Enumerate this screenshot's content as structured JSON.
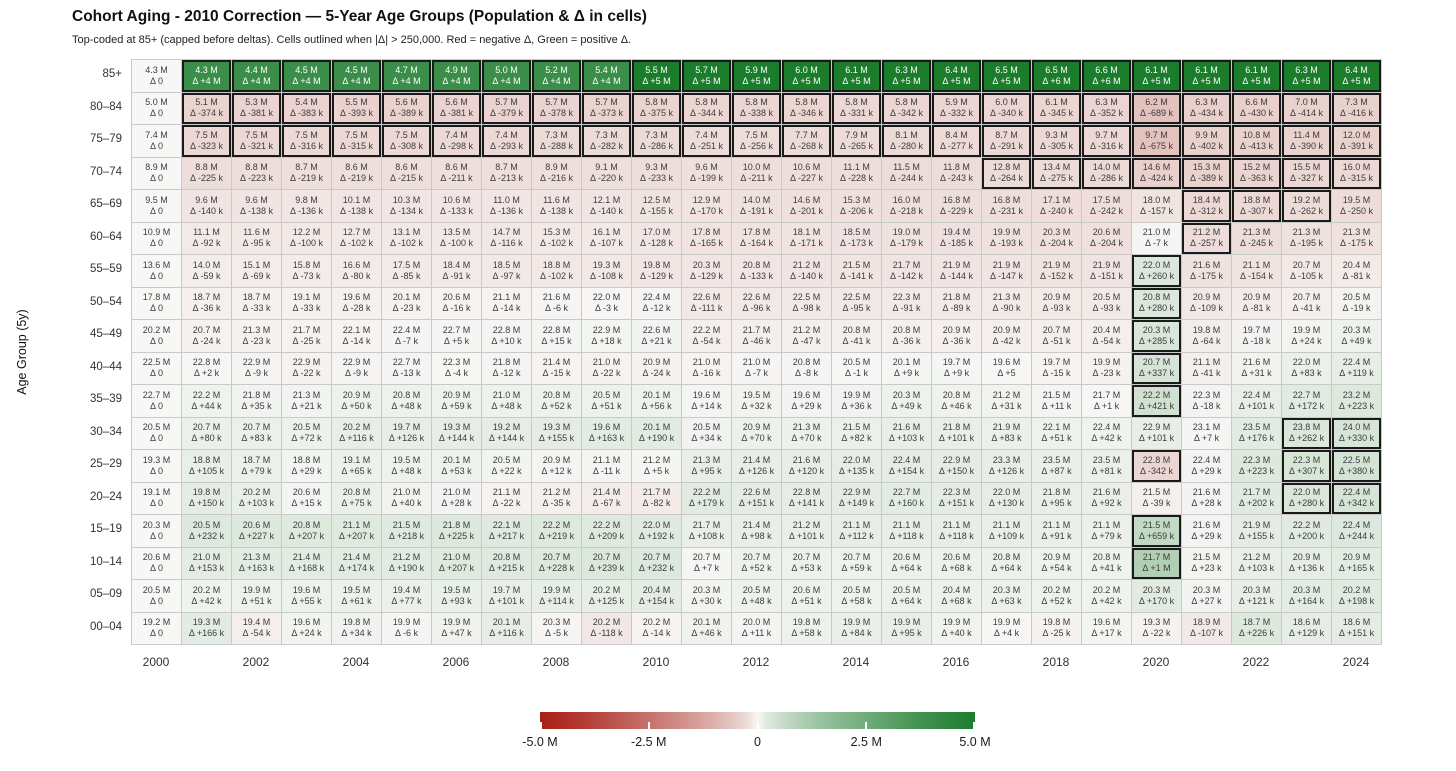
{
  "header": {
    "title": "Cohort Aging - 2010 Correction — 5-Year Age Groups (Population & Δ in cells)",
    "subtitle": "Top-coded at 85+ (capped before deltas). Cells outlined when |Δ| > 250,000. Red = negative Δ, Green = positive Δ."
  },
  "y_axis": {
    "title": "Age Group (5y)"
  },
  "x_axis": {
    "tick_labels": [
      "2000",
      "2002",
      "2004",
      "2006",
      "2008",
      "2010",
      "2012",
      "2014",
      "2016",
      "2018",
      "2020",
      "2022",
      "2024"
    ]
  },
  "colorbar": {
    "tick_labels": [
      "-5.0 M",
      "-2.5 M",
      "0",
      "2.5 M",
      "5.0 M"
    ],
    "min": -5000000,
    "max": 5000000
  },
  "colors": {
    "negative_end": "#a81e14",
    "positive_end": "#1b7c2c",
    "center": "#f7f7f5",
    "outline": "#1a1a1a",
    "grid_border": "#c9c9c9"
  },
  "chart_data": {
    "type": "heatmap",
    "title": "Cohort Aging - 2010 Correction — 5-Year Age Groups (Population & Δ in cells)",
    "subtitle": "Top-coded at 85+ (capped before deltas). Cells outlined when |Δ| > 250,000. Red = negative Δ, Green = positive Δ.",
    "xlabel": "",
    "ylabel": "Age Group (5y)",
    "color_scale": {
      "min": -5000000,
      "max": 5000000,
      "legend_ticks": [
        "-5.0 M",
        "-2.5 M",
        "0",
        "2.5 M",
        "5.0 M"
      ]
    },
    "outline_threshold_abs_delta": 250000,
    "years": [
      2000,
      2001,
      2002,
      2003,
      2004,
      2005,
      2006,
      2007,
      2008,
      2009,
      2010,
      2011,
      2012,
      2013,
      2014,
      2015,
      2016,
      2017,
      2018,
      2019,
      2020,
      2021,
      2022,
      2023,
      2024
    ],
    "rows": [
      {
        "label": "85+",
        "pop_m": [
          4.3,
          4.3,
          4.4,
          4.5,
          4.5,
          4.7,
          4.9,
          5.0,
          5.2,
          5.4,
          5.5,
          5.7,
          5.9,
          6.0,
          6.1,
          6.3,
          6.4,
          6.5,
          6.5,
          6.6,
          6.1,
          6.1,
          6.1,
          6.3,
          6.4
        ],
        "delta": [
          "0",
          "+4 M",
          "+4 M",
          "+4 M",
          "+4 M",
          "+4 M",
          "+4 M",
          "+4 M",
          "+4 M",
          "+4 M",
          "+5 M",
          "+5 M",
          "+5 M",
          "+5 M",
          "+5 M",
          "+5 M",
          "+5 M",
          "+5 M",
          "+6 M",
          "+6 M",
          "+5 M",
          "+5 M",
          "+5 M",
          "+5 M",
          "+5 M"
        ]
      },
      {
        "label": "80–84",
        "pop_m": [
          5.0,
          5.1,
          5.3,
          5.4,
          5.5,
          5.6,
          5.6,
          5.7,
          5.7,
          5.7,
          5.8,
          5.8,
          5.8,
          5.8,
          5.8,
          5.8,
          5.9,
          6.0,
          6.1,
          6.3,
          6.2,
          6.3,
          6.6,
          7.0,
          7.3
        ],
        "delta": [
          "0",
          "-374 k",
          "-381 k",
          "-383 k",
          "-393 k",
          "-389 k",
          "-381 k",
          "-379 k",
          "-378 k",
          "-373 k",
          "-375 k",
          "-344 k",
          "-338 k",
          "-346 k",
          "-331 k",
          "-342 k",
          "-332 k",
          "-340 k",
          "-345 k",
          "-352 k",
          "-689 k",
          "-434 k",
          "-430 k",
          "-414 k",
          "-416 k"
        ]
      },
      {
        "label": "75–79",
        "pop_m": [
          7.4,
          7.5,
          7.5,
          7.5,
          7.5,
          7.5,
          7.4,
          7.4,
          7.3,
          7.3,
          7.3,
          7.4,
          7.5,
          7.7,
          7.9,
          8.1,
          8.4,
          8.7,
          9.3,
          9.7,
          9.7,
          9.9,
          10.8,
          11.4,
          12.0
        ],
        "delta": [
          "0",
          "-323 k",
          "-321 k",
          "-316 k",
          "-315 k",
          "-308 k",
          "-298 k",
          "-293 k",
          "-288 k",
          "-282 k",
          "-286 k",
          "-251 k",
          "-256 k",
          "-268 k",
          "-265 k",
          "-280 k",
          "-277 k",
          "-291 k",
          "-305 k",
          "-316 k",
          "-675 k",
          "-402 k",
          "-413 k",
          "-390 k",
          "-391 k"
        ]
      },
      {
        "label": "70–74",
        "pop_m": [
          8.9,
          8.8,
          8.8,
          8.7,
          8.6,
          8.6,
          8.6,
          8.7,
          8.9,
          9.1,
          9.3,
          9.6,
          10.0,
          10.6,
          11.1,
          11.5,
          11.8,
          12.8,
          13.4,
          14.0,
          14.6,
          15.3,
          15.2,
          15.5,
          16.0
        ],
        "delta": [
          "0",
          "-225 k",
          "-223 k",
          "-219 k",
          "-219 k",
          "-215 k",
          "-211 k",
          "-213 k",
          "-216 k",
          "-220 k",
          "-233 k",
          "-199 k",
          "-211 k",
          "-227 k",
          "-228 k",
          "-244 k",
          "-243 k",
          "-264 k",
          "-275 k",
          "-286 k",
          "-424 k",
          "-389 k",
          "-363 k",
          "-327 k",
          "-315 k"
        ]
      },
      {
        "label": "65–69",
        "pop_m": [
          9.5,
          9.6,
          9.6,
          9.8,
          10.1,
          10.3,
          10.6,
          11.0,
          11.6,
          12.1,
          12.5,
          12.9,
          14.0,
          14.6,
          15.3,
          16.0,
          16.8,
          16.8,
          17.1,
          17.5,
          18.0,
          18.4,
          18.8,
          19.2,
          19.5
        ],
        "delta": [
          "0",
          "-140 k",
          "-138 k",
          "-136 k",
          "-138 k",
          "-134 k",
          "-133 k",
          "-136 k",
          "-138 k",
          "-140 k",
          "-155 k",
          "-170 k",
          "-191 k",
          "-201 k",
          "-206 k",
          "-218 k",
          "-229 k",
          "-231 k",
          "-240 k",
          "-242 k",
          "-157 k",
          "-312 k",
          "-307 k",
          "-262 k",
          "-250 k"
        ]
      },
      {
        "label": "60–64",
        "pop_m": [
          10.9,
          11.1,
          11.6,
          12.2,
          12.7,
          13.1,
          13.5,
          14.7,
          15.3,
          16.1,
          17.0,
          17.8,
          17.8,
          18.1,
          18.5,
          19.0,
          19.4,
          19.9,
          20.3,
          20.6,
          21.0,
          21.2,
          21.3,
          21.3,
          21.3
        ],
        "delta": [
          "0",
          "-92 k",
          "-95 k",
          "-100 k",
          "-102 k",
          "-102 k",
          "-100 k",
          "-116 k",
          "-102 k",
          "-107 k",
          "-128 k",
          "-165 k",
          "-164 k",
          "-171 k",
          "-173 k",
          "-179 k",
          "-185 k",
          "-193 k",
          "-204 k",
          "-204 k",
          "-7 k",
          "-257 k",
          "-245 k",
          "-195 k",
          "-175 k"
        ]
      },
      {
        "label": "55–59",
        "pop_m": [
          13.6,
          14.0,
          15.1,
          15.8,
          16.6,
          17.5,
          18.4,
          18.5,
          18.8,
          19.3,
          19.8,
          20.3,
          20.8,
          21.2,
          21.5,
          21.7,
          21.9,
          21.9,
          21.9,
          21.9,
          22.0,
          21.6,
          21.1,
          20.7,
          20.4
        ],
        "delta": [
          "0",
          "-59 k",
          "-69 k",
          "-73 k",
          "-80 k",
          "-85 k",
          "-91 k",
          "-97 k",
          "-102 k",
          "-108 k",
          "-129 k",
          "-129 k",
          "-133 k",
          "-140 k",
          "-141 k",
          "-142 k",
          "-144 k",
          "-147 k",
          "-152 k",
          "-151 k",
          "+260 k",
          "-175 k",
          "-154 k",
          "-105 k",
          "-81 k"
        ]
      },
      {
        "label": "50–54",
        "pop_m": [
          17.8,
          18.7,
          18.7,
          19.1,
          19.6,
          20.1,
          20.6,
          21.1,
          21.6,
          22.0,
          22.4,
          22.6,
          22.6,
          22.5,
          22.5,
          22.3,
          21.8,
          21.3,
          20.9,
          20.5,
          20.8,
          20.9,
          20.9,
          20.7,
          20.5
        ],
        "delta": [
          "0",
          "-36 k",
          "-33 k",
          "-33 k",
          "-28 k",
          "-23 k",
          "-16 k",
          "-14 k",
          "-6 k",
          "-3 k",
          "-12 k",
          "-111 k",
          "-96 k",
          "-98 k",
          "-95 k",
          "-91 k",
          "-89 k",
          "-90 k",
          "-93 k",
          "-93 k",
          "+280 k",
          "-109 k",
          "-81 k",
          "-41 k",
          "-19 k"
        ]
      },
      {
        "label": "45–49",
        "pop_m": [
          20.2,
          20.7,
          21.3,
          21.7,
          22.1,
          22.4,
          22.7,
          22.8,
          22.8,
          22.9,
          22.6,
          22.2,
          21.7,
          21.2,
          20.8,
          20.8,
          20.9,
          20.9,
          20.7,
          20.4,
          20.3,
          19.8,
          19.7,
          19.9,
          20.3
        ],
        "delta": [
          "0",
          "-24 k",
          "-23 k",
          "-25 k",
          "-14 k",
          "-7 k",
          "+5 k",
          "+10 k",
          "+15 k",
          "+18 k",
          "+21 k",
          "-54 k",
          "-46 k",
          "-47 k",
          "-41 k",
          "-36 k",
          "-36 k",
          "-42 k",
          "-51 k",
          "-54 k",
          "+285 k",
          "-64 k",
          "-18 k",
          "+24 k",
          "+49 k"
        ]
      },
      {
        "label": "40–44",
        "pop_m": [
          22.5,
          22.8,
          22.9,
          22.9,
          22.9,
          22.7,
          22.3,
          21.8,
          21.4,
          21.0,
          20.9,
          21.0,
          21.0,
          20.8,
          20.5,
          20.1,
          19.7,
          19.6,
          19.7,
          19.9,
          20.7,
          21.1,
          21.6,
          22.0,
          22.4
        ],
        "delta": [
          "0",
          "+2 k",
          "-9 k",
          "-22 k",
          "-9 k",
          "-13 k",
          "-4 k",
          "-12 k",
          "-15 k",
          "-22 k",
          "-24 k",
          "-16 k",
          "-7 k",
          "-8 k",
          "-1 k",
          "+9 k",
          "+9 k",
          "+5",
          "-15 k",
          "-23 k",
          "+337 k",
          "-41 k",
          "+31 k",
          "+83 k",
          "+119 k"
        ]
      },
      {
        "label": "35–39",
        "pop_m": [
          22.7,
          22.2,
          21.8,
          21.3,
          20.9,
          20.8,
          20.9,
          21.0,
          20.8,
          20.5,
          20.1,
          19.6,
          19.5,
          19.6,
          19.9,
          20.3,
          20.8,
          21.2,
          21.5,
          21.7,
          22.2,
          22.3,
          22.4,
          22.7,
          23.2
        ],
        "delta": [
          "0",
          "+44 k",
          "+35 k",
          "+21 k",
          "+50 k",
          "+48 k",
          "+59 k",
          "+48 k",
          "+52 k",
          "+51 k",
          "+56 k",
          "+14 k",
          "+32 k",
          "+29 k",
          "+36 k",
          "+49 k",
          "+46 k",
          "+31 k",
          "+11 k",
          "+1 k",
          "+421 k",
          "-18 k",
          "+101 k",
          "+172 k",
          "+223 k"
        ]
      },
      {
        "label": "30–34",
        "pop_m": [
          20.5,
          20.7,
          20.7,
          20.5,
          20.2,
          19.7,
          19.3,
          19.2,
          19.3,
          19.6,
          20.1,
          20.5,
          20.9,
          21.3,
          21.5,
          21.6,
          21.8,
          21.9,
          22.1,
          22.4,
          22.9,
          23.1,
          23.5,
          23.8,
          24.0
        ],
        "delta": [
          "0",
          "+80 k",
          "+83 k",
          "+72 k",
          "+116 k",
          "+126 k",
          "+144 k",
          "+144 k",
          "+155 k",
          "+163 k",
          "+190 k",
          "+34 k",
          "+70 k",
          "+70 k",
          "+82 k",
          "+103 k",
          "+101 k",
          "+83 k",
          "+51 k",
          "+42 k",
          "+101 k",
          "+7 k",
          "+176 k",
          "+262 k",
          "+330 k"
        ]
      },
      {
        "label": "25–29",
        "pop_m": [
          19.3,
          18.8,
          18.7,
          18.8,
          19.1,
          19.5,
          20.1,
          20.5,
          20.9,
          21.1,
          21.2,
          21.3,
          21.4,
          21.6,
          22.0,
          22.4,
          22.9,
          23.3,
          23.5,
          23.5,
          22.8,
          22.4,
          22.3,
          22.3,
          22.5
        ],
        "delta": [
          "0",
          "+105 k",
          "+79 k",
          "+29 k",
          "+65 k",
          "+48 k",
          "+53 k",
          "+22 k",
          "+12 k",
          "-11 k",
          "+5 k",
          "+95 k",
          "+126 k",
          "+120 k",
          "+135 k",
          "+154 k",
          "+150 k",
          "+126 k",
          "+87 k",
          "+81 k",
          "-342 k",
          "+29 k",
          "+223 k",
          "+307 k",
          "+380 k"
        ]
      },
      {
        "label": "20–24",
        "pop_m": [
          19.1,
          19.8,
          20.2,
          20.6,
          20.8,
          21.0,
          21.0,
          21.1,
          21.2,
          21.4,
          21.7,
          22.2,
          22.6,
          22.8,
          22.9,
          22.7,
          22.3,
          22.0,
          21.8,
          21.6,
          21.5,
          21.6,
          21.7,
          22.0,
          22.4
        ],
        "delta": [
          "0",
          "+150 k",
          "+103 k",
          "+15 k",
          "+75 k",
          "+40 k",
          "+28 k",
          "-22 k",
          "-35 k",
          "-67 k",
          "-82 k",
          "+179 k",
          "+151 k",
          "+141 k",
          "+149 k",
          "+160 k",
          "+151 k",
          "+130 k",
          "+95 k",
          "+92 k",
          "-39 k",
          "+28 k",
          "+202 k",
          "+280 k",
          "+342 k"
        ]
      },
      {
        "label": "15–19",
        "pop_m": [
          20.3,
          20.5,
          20.6,
          20.8,
          21.1,
          21.5,
          21.8,
          22.1,
          22.2,
          22.2,
          22.0,
          21.7,
          21.4,
          21.2,
          21.1,
          21.1,
          21.1,
          21.1,
          21.1,
          21.1,
          21.5,
          21.6,
          21.9,
          22.2,
          22.4
        ],
        "delta": [
          "0",
          "+232 k",
          "+227 k",
          "+207 k",
          "+207 k",
          "+218 k",
          "+225 k",
          "+217 k",
          "+219 k",
          "+209 k",
          "+192 k",
          "+108 k",
          "+98 k",
          "+101 k",
          "+112 k",
          "+118 k",
          "+118 k",
          "+109 k",
          "+91 k",
          "+79 k",
          "+659 k",
          "+29 k",
          "+155 k",
          "+200 k",
          "+244 k"
        ]
      },
      {
        "label": "10–14",
        "pop_m": [
          20.6,
          21.0,
          21.3,
          21.4,
          21.4,
          21.2,
          21.0,
          20.8,
          20.7,
          20.7,
          20.7,
          20.7,
          20.7,
          20.7,
          20.7,
          20.6,
          20.6,
          20.8,
          20.9,
          20.8,
          21.7,
          21.5,
          21.2,
          20.9,
          20.9
        ],
        "delta": [
          "0",
          "+153 k",
          "+163 k",
          "+168 k",
          "+174 k",
          "+190 k",
          "+207 k",
          "+215 k",
          "+228 k",
          "+239 k",
          "+232 k",
          "+7 k",
          "+52 k",
          "+53 k",
          "+59 k",
          "+64 k",
          "+68 k",
          "+64 k",
          "+54 k",
          "+41 k",
          "+1 M",
          "+23 k",
          "+103 k",
          "+136 k",
          "+165 k"
        ]
      },
      {
        "label": "05–09",
        "pop_m": [
          20.5,
          20.2,
          19.9,
          19.6,
          19.5,
          19.4,
          19.5,
          19.7,
          19.9,
          20.2,
          20.4,
          20.3,
          20.5,
          20.6,
          20.5,
          20.5,
          20.4,
          20.3,
          20.2,
          20.2,
          20.3,
          20.3,
          20.3,
          20.3,
          20.2
        ],
        "delta": [
          "0",
          "+42 k",
          "+51 k",
          "+55 k",
          "+61 k",
          "+77 k",
          "+93 k",
          "+101 k",
          "+114 k",
          "+125 k",
          "+154 k",
          "+30 k",
          "+48 k",
          "+51 k",
          "+58 k",
          "+64 k",
          "+68 k",
          "+63 k",
          "+52 k",
          "+42 k",
          "+170 k",
          "+27 k",
          "+121 k",
          "+164 k",
          "+198 k"
        ]
      },
      {
        "label": "00–04",
        "pop_m": [
          19.2,
          19.3,
          19.4,
          19.6,
          19.8,
          19.9,
          19.9,
          20.1,
          20.3,
          20.2,
          20.2,
          20.1,
          20.0,
          19.8,
          19.9,
          19.9,
          19.9,
          19.9,
          19.8,
          19.6,
          19.3,
          18.9,
          18.7,
          18.6,
          18.6
        ],
        "delta": [
          "0",
          "+166 k",
          "-54 k",
          "+24 k",
          "+34 k",
          "-6 k",
          "+47 k",
          "+116 k",
          "-5 k",
          "-118 k",
          "-14 k",
          "+46 k",
          "+11 k",
          "+58 k",
          "+84 k",
          "+95 k",
          "+40 k",
          "+4 k",
          "-25 k",
          "+17 k",
          "-22 k",
          "-107 k",
          "+226 k",
          "+129 k",
          "+151 k"
        ]
      }
    ]
  }
}
